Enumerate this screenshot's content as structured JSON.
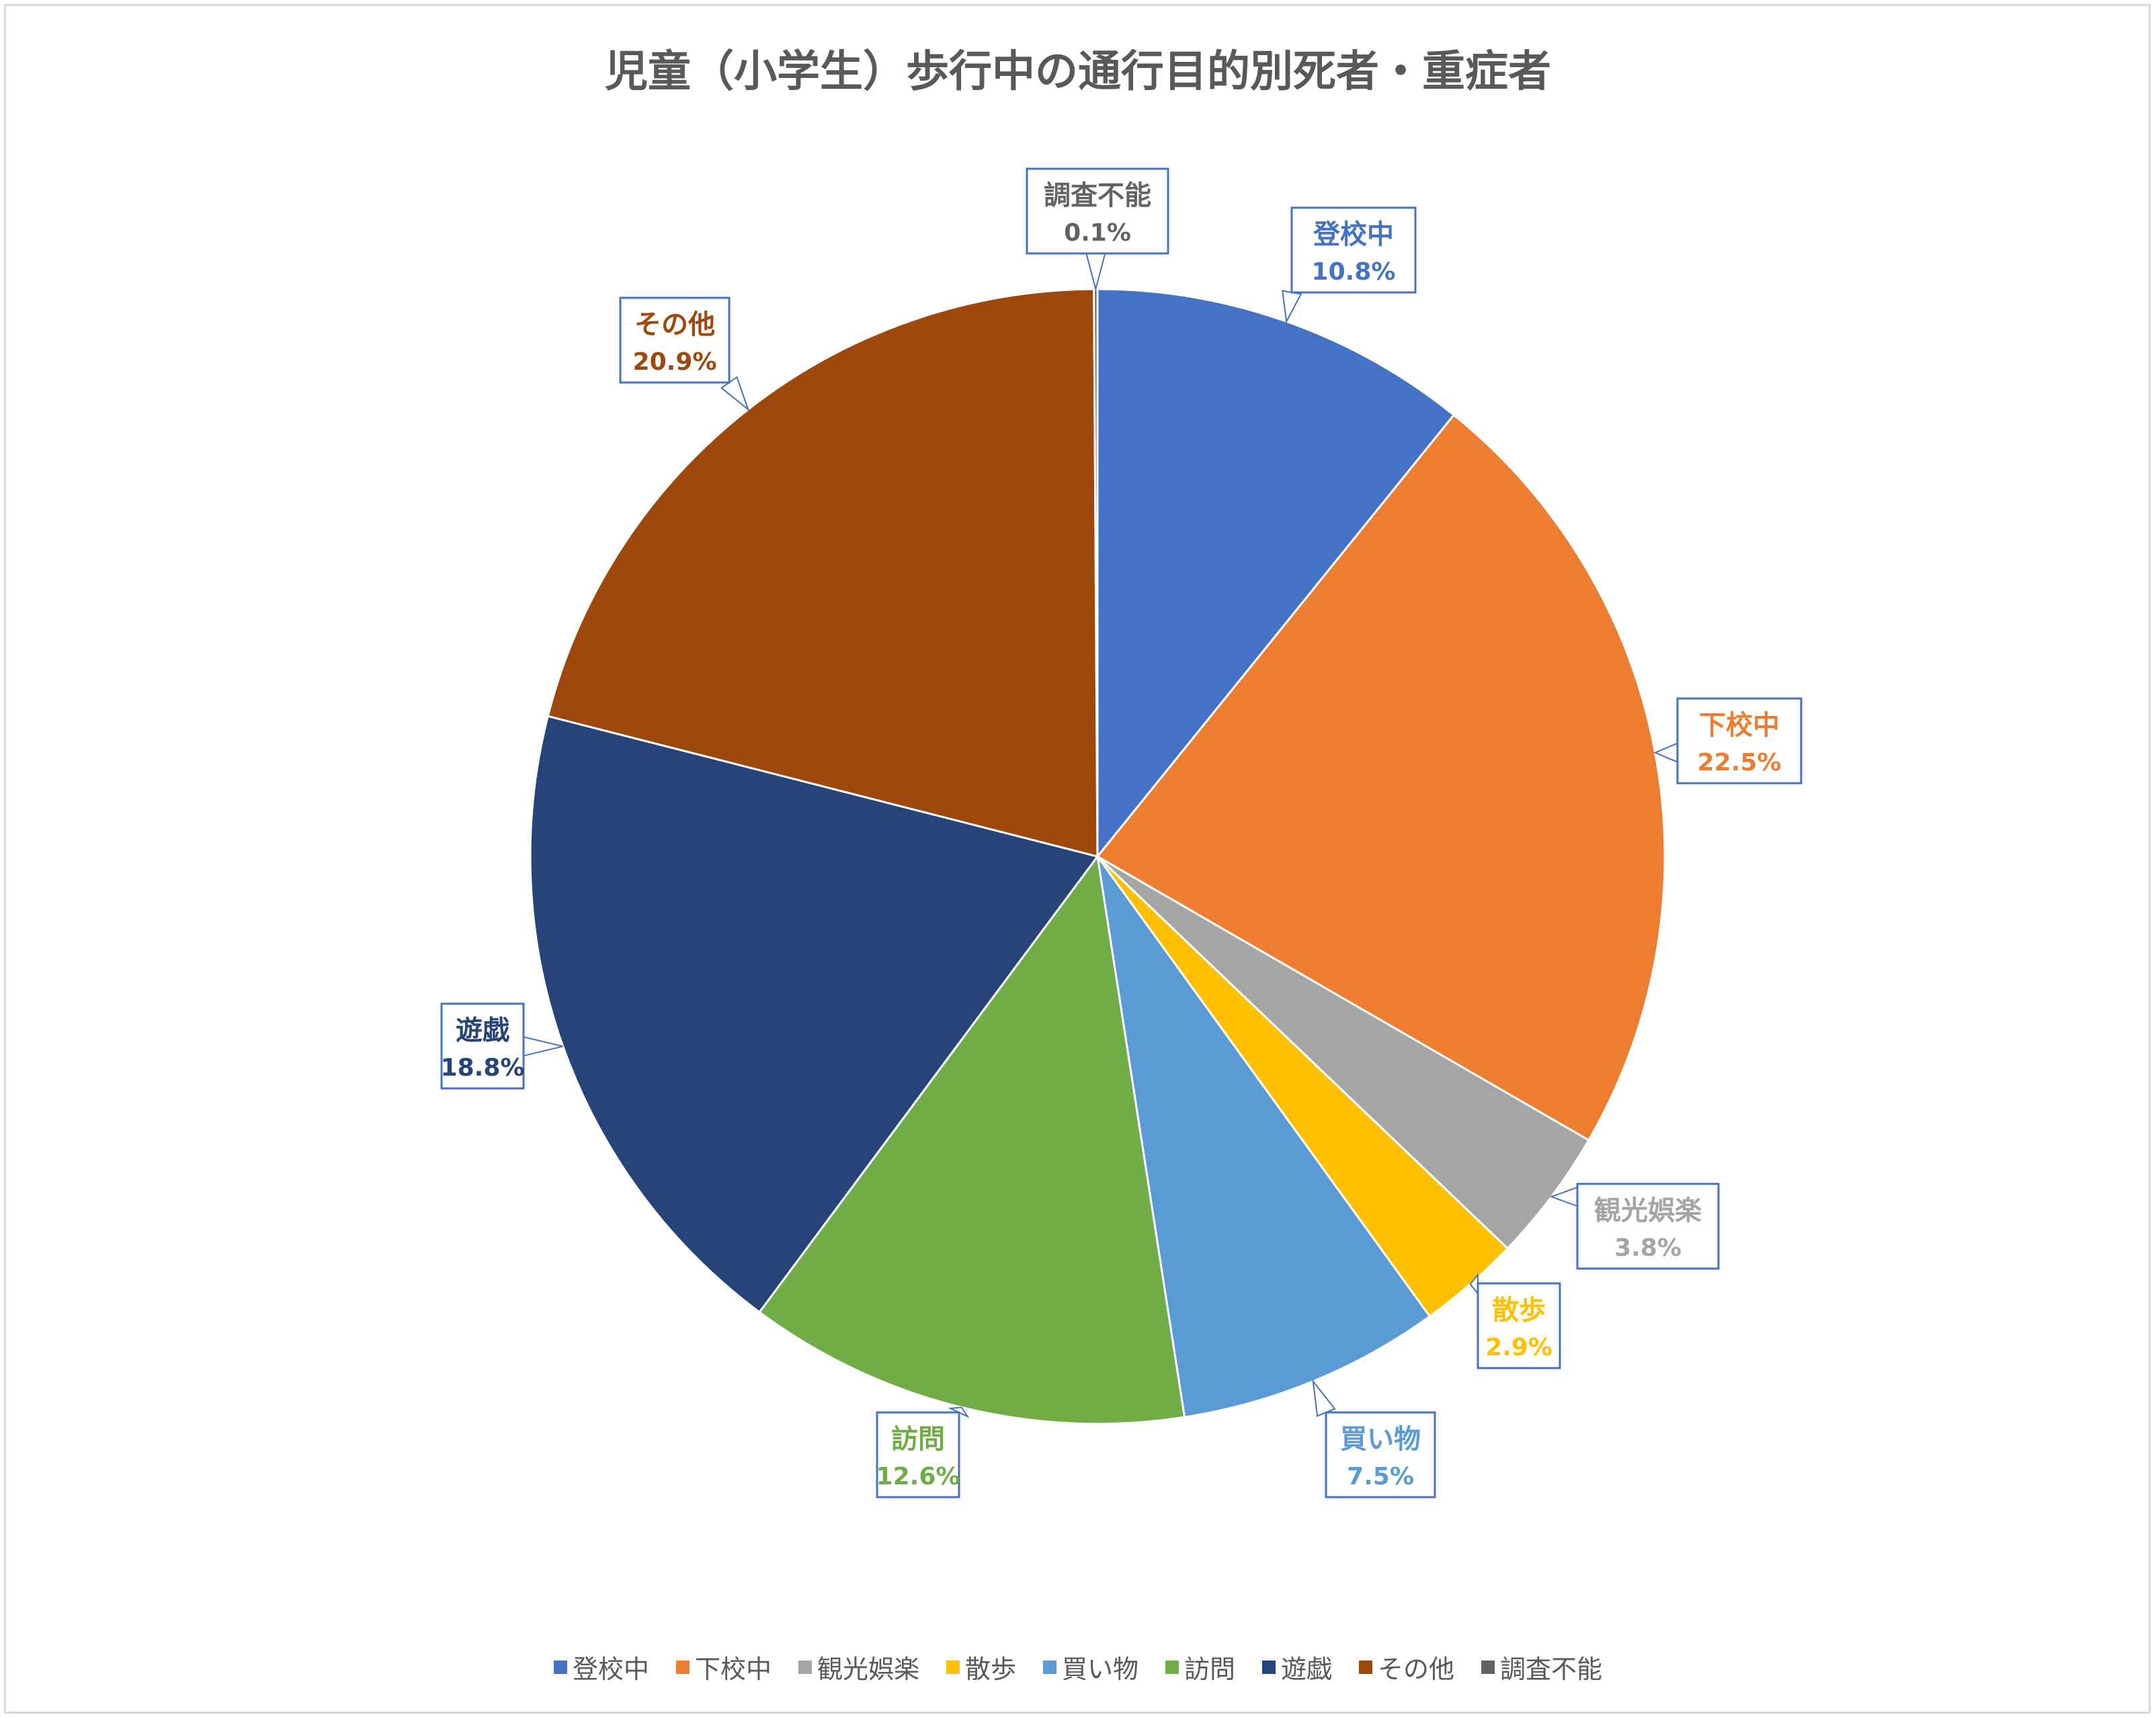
{
  "chart_data": {
    "type": "pie",
    "title": "児童（小学生）歩行中の通行目的別死者・重症者",
    "legend_position": "bottom",
    "start_angle_deg": 0,
    "direction": "clockwise",
    "slices": [
      {
        "label": "登校中",
        "value": 10.8,
        "value_label": "10.8%",
        "color": "#4472c4"
      },
      {
        "label": "下校中",
        "value": 22.5,
        "value_label": "22.5%",
        "color": "#ed7d31"
      },
      {
        "label": "観光娯楽",
        "value": 3.8,
        "value_label": "3.8%",
        "color": "#a5a5a5"
      },
      {
        "label": "散歩",
        "value": 2.9,
        "value_label": "2.9%",
        "color": "#ffc000"
      },
      {
        "label": "買い物",
        "value": 7.5,
        "value_label": "7.5%",
        "color": "#5b9bd5"
      },
      {
        "label": "訪問",
        "value": 12.6,
        "value_label": "12.6%",
        "color": "#70ad47"
      },
      {
        "label": "遊戯",
        "value": 18.8,
        "value_label": "18.8%",
        "color": "#264478"
      },
      {
        "label": "その他",
        "value": 20.9,
        "value_label": "20.9%",
        "color": "#9e480e"
      },
      {
        "label": "調査不能",
        "value": 0.1,
        "value_label": "0.1%",
        "color": "#636363"
      }
    ]
  }
}
